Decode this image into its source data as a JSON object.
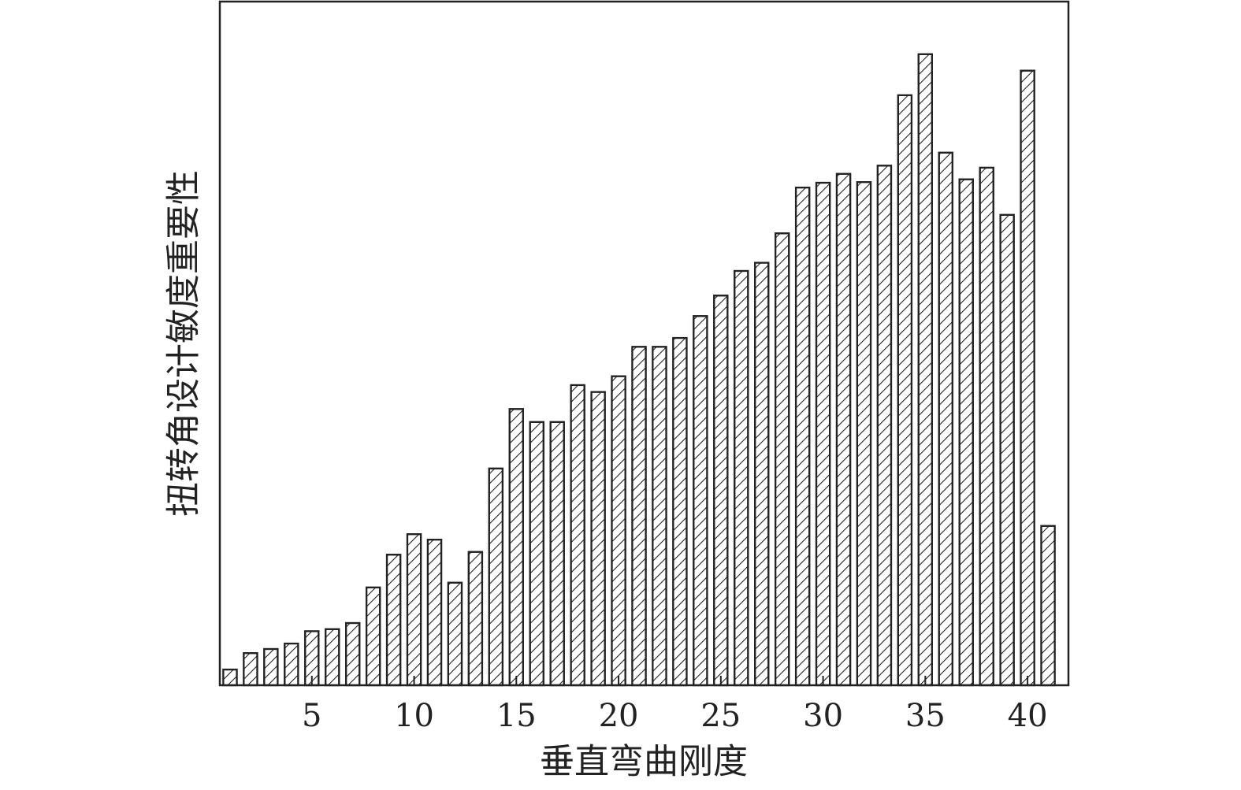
{
  "chart_data": {
    "type": "bar",
    "xlabel": "垂直弯曲刚度",
    "ylabel": "扭转角设计敏度重要性",
    "x": [
      1,
      2,
      3,
      4,
      5,
      6,
      7,
      8,
      9,
      10,
      11,
      12,
      13,
      14,
      15,
      16,
      17,
      18,
      19,
      20,
      21,
      22,
      23,
      24,
      25,
      26,
      27,
      28,
      29,
      30,
      31,
      32,
      33,
      34,
      35,
      36,
      37,
      38,
      39,
      40,
      41
    ],
    "values": [
      2.3,
      4.7,
      5.3,
      6.1,
      7.9,
      8.2,
      9.1,
      14.3,
      19.1,
      22.1,
      21.3,
      15.0,
      19.5,
      31.7,
      40.4,
      38.5,
      38.5,
      43.9,
      42.9,
      45.2,
      49.5,
      49.5,
      50.8,
      54.0,
      57.0,
      60.6,
      61.8,
      66.1,
      72.8,
      73.5,
      74.8,
      73.6,
      76.0,
      86.3,
      92.3,
      77.9,
      74.0,
      75.7,
      68.8,
      89.9,
      23.3
    ],
    "xlim": [
      0.5,
      42
    ],
    "xticks": [
      5,
      10,
      15,
      20,
      25,
      30,
      35,
      40
    ],
    "ylim": [
      0,
      100
    ],
    "color": "#ffffff",
    "hatch": true
  }
}
